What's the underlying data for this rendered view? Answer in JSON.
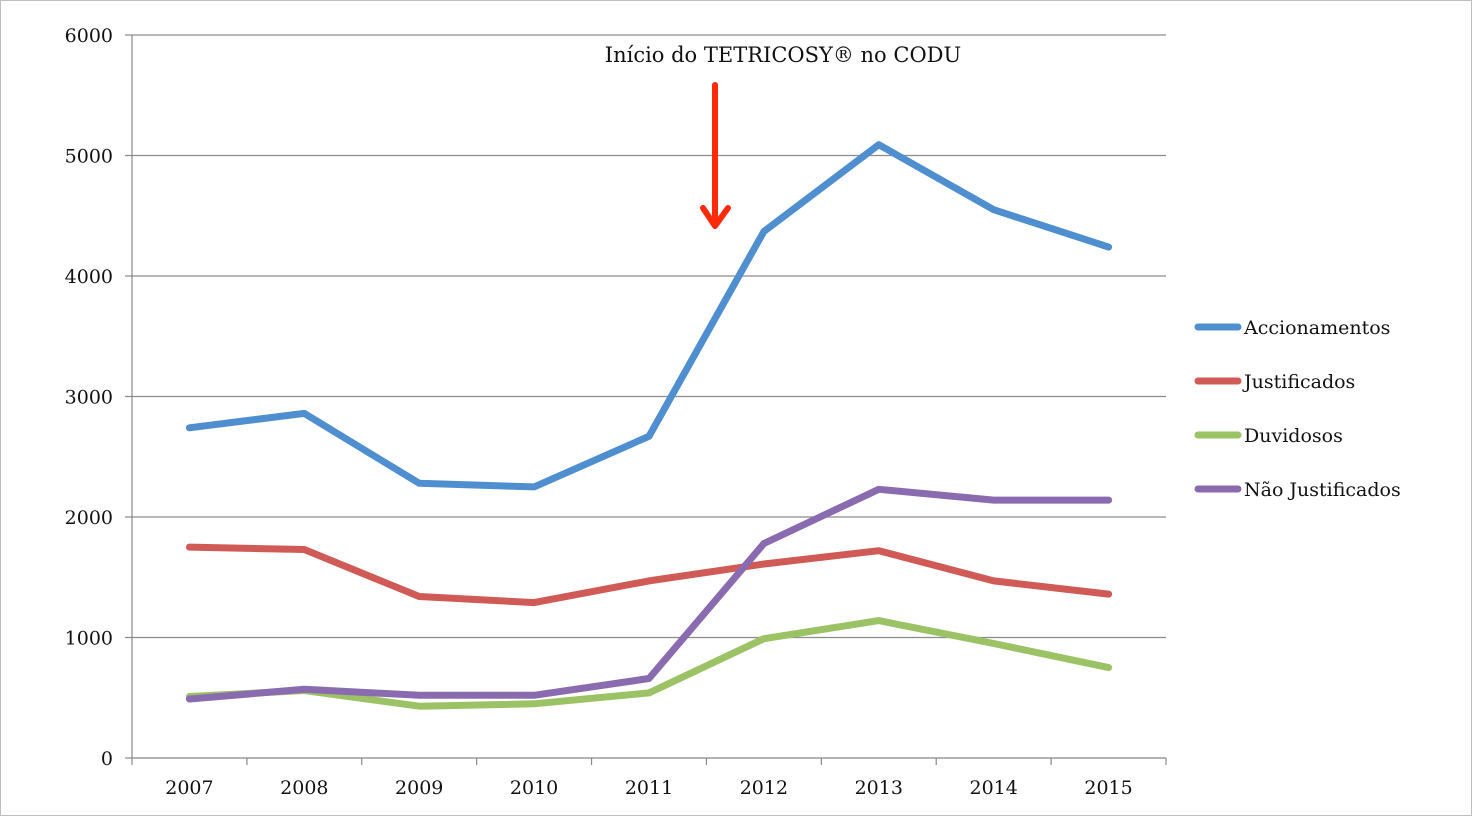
{
  "chart_data": {
    "type": "line",
    "title": "",
    "xlabel": "",
    "ylabel": "",
    "categories": [
      "2007",
      "2008",
      "2009",
      "2010",
      "2011",
      "2012",
      "2013",
      "2014",
      "2015"
    ],
    "ylim": [
      0,
      6000
    ],
    "yticks": [
      0,
      1000,
      2000,
      3000,
      4000,
      5000,
      6000
    ],
    "grid": "horizontal",
    "legend_position": "right",
    "series": [
      {
        "name": "Accionamentos",
        "color": "#4f8fd0",
        "values": [
          2740,
          2860,
          2280,
          2250,
          2670,
          4370,
          5090,
          4550,
          4240
        ]
      },
      {
        "name": "Justificados",
        "color": "#d05a55",
        "values": [
          1750,
          1730,
          1340,
          1290,
          1470,
          1610,
          1720,
          1470,
          1360
        ]
      },
      {
        "name": "Duvidosos",
        "color": "#9bc264",
        "values": [
          510,
          560,
          430,
          450,
          540,
          990,
          1140,
          950,
          750
        ]
      },
      {
        "name": "Não Justificados",
        "color": "#8a6bb0",
        "values": [
          490,
          570,
          520,
          520,
          660,
          1780,
          2230,
          2140,
          2140
        ]
      }
    ],
    "annotation": {
      "text": "Início do TETRICOSY® no CODU",
      "arrow_color": "#ff2a0a"
    }
  }
}
